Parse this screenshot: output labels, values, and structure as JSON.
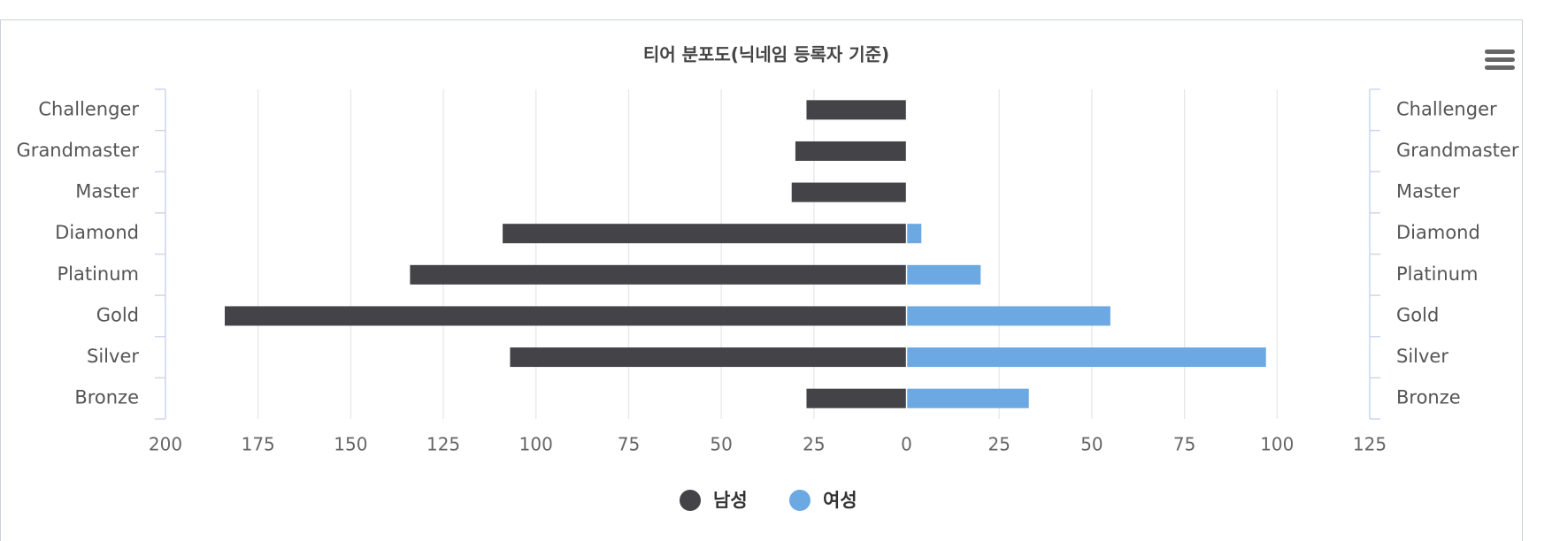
{
  "chart_data": {
    "type": "bar",
    "title": "티어 분포도(닉네임 등록자 기준)",
    "categories": [
      "Challenger",
      "Grandmaster",
      "Master",
      "Diamond",
      "Platinum",
      "Gold",
      "Silver",
      "Bronze"
    ],
    "series": [
      {
        "name": "남성",
        "color": "#434348",
        "values": [
          -27,
          -30,
          -31,
          -109,
          -134,
          -184,
          -107,
          -27
        ]
      },
      {
        "name": "여성",
        "color": "#6ca8e2",
        "values": [
          0,
          0,
          0,
          4,
          20,
          55,
          97,
          33
        ]
      }
    ],
    "xlim": [
      -200,
      125
    ],
    "xticks": [
      {
        "value": -200,
        "label": "200"
      },
      {
        "value": -175,
        "label": "175"
      },
      {
        "value": -150,
        "label": "150"
      },
      {
        "value": -125,
        "label": "125"
      },
      {
        "value": -100,
        "label": "100"
      },
      {
        "value": -75,
        "label": "75"
      },
      {
        "value": -50,
        "label": "50"
      },
      {
        "value": -25,
        "label": "25"
      },
      0,
      25,
      50,
      75,
      100,
      125
    ],
    "grid": true,
    "legend": "bottom"
  }
}
